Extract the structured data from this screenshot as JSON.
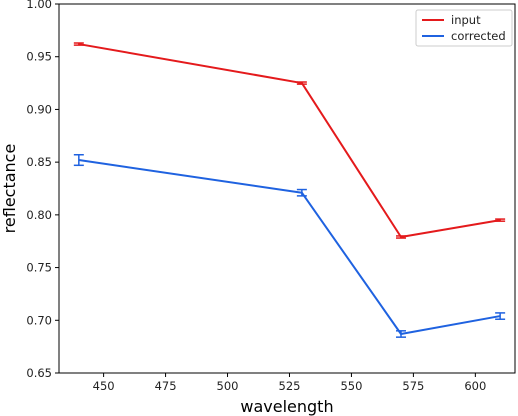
{
  "chart_data": {
    "type": "line",
    "title": "",
    "xlabel": "wavelength",
    "ylabel": "reflectance",
    "xlim": [
      432,
      616
    ],
    "ylim": [
      0.65,
      1.0
    ],
    "xticks": [
      450,
      475,
      500,
      525,
      550,
      575,
      600
    ],
    "yticks": [
      0.65,
      0.7,
      0.75,
      0.8,
      0.85,
      0.9,
      0.95,
      1.0
    ],
    "ytick_labels": [
      "0.65",
      "0.70",
      "0.75",
      "0.80",
      "0.85",
      "0.90",
      "0.95",
      "1.00"
    ],
    "grid": false,
    "legend_position": "top-right",
    "x": [
      440,
      530,
      570,
      610
    ],
    "series": [
      {
        "name": "input",
        "color": "#e41a1c",
        "values": [
          0.962,
          0.925,
          0.779,
          0.795
        ],
        "errors": [
          0.001,
          0.001,
          0.001,
          0.001
        ]
      },
      {
        "name": "corrected",
        "color": "#1f62e0",
        "values": [
          0.852,
          0.821,
          0.687,
          0.704
        ],
        "errors": [
          0.005,
          0.003,
          0.003,
          0.003
        ]
      }
    ]
  }
}
